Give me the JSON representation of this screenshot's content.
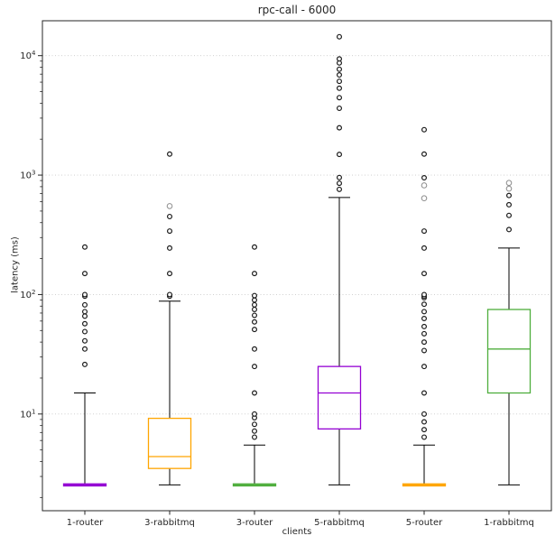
{
  "chart_data": {
    "type": "boxplot",
    "title": "rpc-call - 6000",
    "xlabel": "clients",
    "ylabel": "latency (ms)",
    "yscale": "log",
    "ylim": [
      1.55,
      19600
    ],
    "ytick_exponents": [
      1,
      2,
      3,
      4
    ],
    "grid": "horizontal dotted gridlines at each decade",
    "legend": null,
    "categories": [
      "1-router",
      "3-rabbitmq",
      "3-router",
      "5-rabbitmq",
      "5-router",
      "1-rabbitmq"
    ],
    "boxes": [
      {
        "label": "1-router",
        "color": "#9400d3",
        "q1": 2.5,
        "median": 2.55,
        "q3": 2.6,
        "whisker_low": null,
        "whisker_high": 15,
        "fliers": [
          26,
          35,
          41,
          49,
          57,
          66,
          72,
          82,
          97,
          100,
          150,
          250
        ],
        "fliers_muted": []
      },
      {
        "label": "3-rabbitmq",
        "color": "#ffa500",
        "q1": 3.5,
        "median": 4.4,
        "q3": 9.2,
        "whisker_low": 2.55,
        "whisker_high": 88,
        "fliers": [
          97,
          100,
          150,
          245,
          340,
          450,
          1500
        ],
        "fliers_muted": [
          550
        ]
      },
      {
        "label": "3-router",
        "color": "#4fae3d",
        "q1": 2.5,
        "median": 2.55,
        "q3": 2.6,
        "whisker_low": null,
        "whisker_high": 5.5,
        "fliers": [
          6.4,
          7.2,
          8.2,
          9.3,
          10,
          15,
          25,
          35,
          51,
          59,
          67,
          75,
          82,
          90,
          98,
          150,
          250
        ],
        "fliers_muted": []
      },
      {
        "label": "5-rabbitmq",
        "color": "#9400d3",
        "q1": 7.5,
        "median": 15,
        "q3": 25,
        "whisker_low": 2.55,
        "whisker_high": 650,
        "fliers": [
          760,
          855,
          955,
          1490,
          2490,
          3630,
          4450,
          5340,
          6100,
          6900,
          7700,
          8700,
          9400,
          14400
        ],
        "fliers_muted": []
      },
      {
        "label": "5-router",
        "color": "#ffa500",
        "q1": 2.5,
        "median": 2.55,
        "q3": 2.6,
        "whisker_low": null,
        "whisker_high": 5.5,
        "fliers": [
          6.4,
          7.4,
          8.6,
          10,
          15,
          25,
          34,
          40,
          47,
          54,
          63,
          72,
          83,
          94,
          97,
          100,
          150,
          245,
          340,
          950,
          1500,
          2400
        ],
        "fliers_muted": [
          640,
          820
        ]
      },
      {
        "label": "1-rabbitmq",
        "color": "#4fae3d",
        "q1": 15,
        "median": 35,
        "q3": 75,
        "whisker_low": 2.55,
        "whisker_high": 245,
        "fliers": [
          350,
          460,
          565,
          675
        ],
        "fliers_muted": [
          770,
          860
        ]
      }
    ],
    "style_colors": {
      "background": "#ffffff",
      "spine": "#262626",
      "grid": "#c9c9c9",
      "whisker": "#000000",
      "flier_stroke": "#1a1a1a",
      "flier_muted_stroke": "#8c8c8c",
      "text": "#262626"
    }
  }
}
